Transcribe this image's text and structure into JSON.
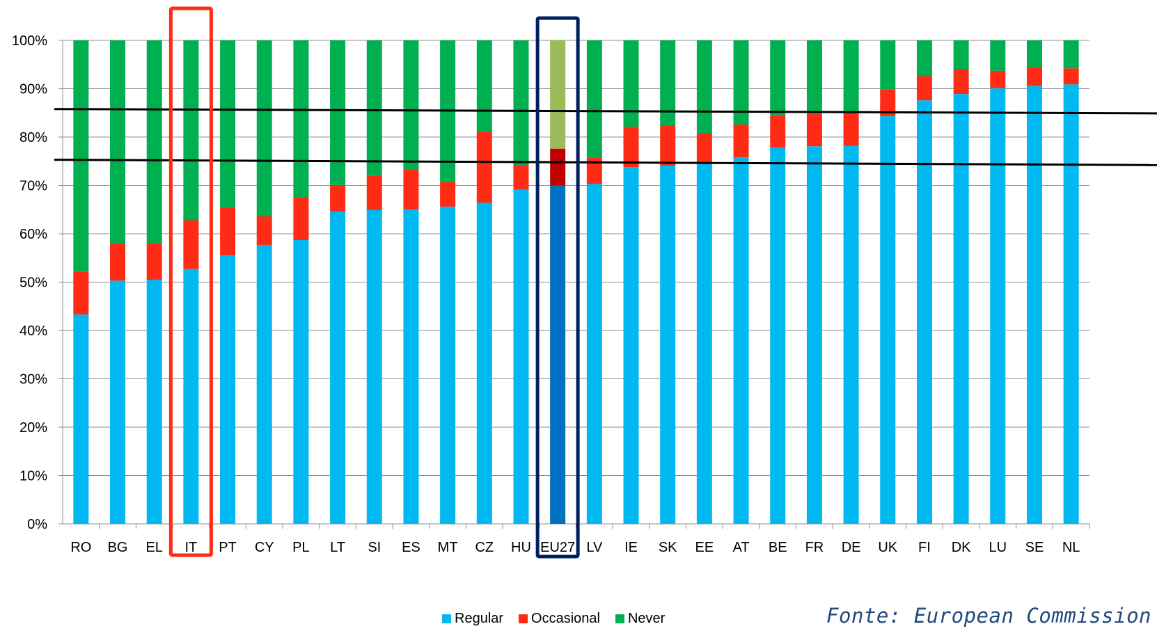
{
  "chart_data": {
    "type": "bar",
    "stacked": true,
    "categories": [
      "RO",
      "BG",
      "EL",
      "IT",
      "PT",
      "CY",
      "PL",
      "LT",
      "SI",
      "ES",
      "MT",
      "CZ",
      "HU",
      "EU27",
      "LV",
      "IE",
      "SK",
      "EE",
      "AT",
      "BE",
      "FR",
      "DE",
      "UK",
      "FI",
      "DK",
      "LU",
      "SE",
      "NL"
    ],
    "series": [
      {
        "name": "Regular",
        "color": "#00b9f1",
        "values": [
          43.3,
          50.3,
          50.5,
          52.7,
          55.5,
          57.7,
          58.7,
          64.6,
          64.9,
          65.0,
          65.6,
          66.4,
          69.1,
          70.0,
          70.3,
          73.8,
          74.1,
          74.7,
          75.8,
          77.8,
          78.1,
          78.2,
          84.3,
          87.6,
          88.9,
          90.1,
          90.6,
          90.9
        ]
      },
      {
        "name": "Occasional",
        "color": "#ff2b14",
        "values": [
          8.9,
          7.7,
          7.6,
          10.1,
          10.0,
          5.9,
          8.9,
          5.5,
          7.1,
          8.3,
          5.1,
          14.7,
          5.0,
          7.6,
          5.5,
          8.3,
          8.2,
          6.1,
          6.8,
          6.7,
          6.7,
          6.7,
          5.6,
          5.0,
          5.2,
          3.6,
          3.9,
          3.3
        ]
      },
      {
        "name": "Never",
        "color": "#00b050",
        "values": [
          47.8,
          42.0,
          41.9,
          37.2,
          34.5,
          36.4,
          32.4,
          29.9,
          28.0,
          26.7,
          29.3,
          18.9,
          25.9,
          22.4,
          24.2,
          17.9,
          17.7,
          19.2,
          17.4,
          15.5,
          15.2,
          15.1,
          10.1,
          7.4,
          5.9,
          6.3,
          5.5,
          5.8
        ]
      }
    ],
    "highlight_colors": {
      "Regular": "#0070c0",
      "Occasional": "#c00000",
      "Never": "#9bbb59"
    },
    "highlighted_category": "EU27",
    "boxed_categories": [
      {
        "category": "IT",
        "color": "#ff2b14"
      },
      {
        "category": "EU27",
        "color": "#002060"
      }
    ],
    "reference_lines": [
      {
        "from": 85.8,
        "to": 84.9
      },
      {
        "from": 75.3,
        "to": 74.2
      }
    ],
    "ylim": [
      0,
      100
    ],
    "yticks": [
      "0%",
      "10%",
      "20%",
      "30%",
      "40%",
      "50%",
      "60%",
      "70%",
      "80%",
      "90%",
      "100%"
    ],
    "grid": true,
    "legend_position": "bottom"
  },
  "legend": {
    "items": [
      {
        "label": "Regular",
        "color": "#00b9f1"
      },
      {
        "label": "Occasional",
        "color": "#ff2b14"
      },
      {
        "label": "Never",
        "color": "#00b050"
      }
    ]
  },
  "source": "Fonte: European Commission"
}
